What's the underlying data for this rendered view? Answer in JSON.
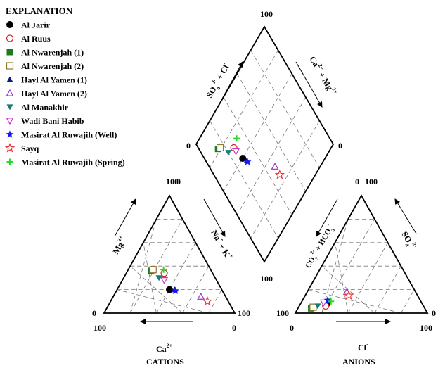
{
  "chart_data": {
    "type": "scatter",
    "subtype": "piper-diagram",
    "legend": {
      "title": "EXPLANATION",
      "placement": "top-left",
      "entries": [
        {
          "name": "Al Jarir",
          "marker": "circle-filled",
          "color": "#000000"
        },
        {
          "name": "Al Ruus",
          "marker": "circle-open",
          "color": "#cc2222"
        },
        {
          "name": "Al Nwarenjah (1)",
          "marker": "square-filled",
          "color": "#1f7a1f"
        },
        {
          "name": "Al Nwarenjah (2)",
          "marker": "square-open",
          "color": "#8a7a2a"
        },
        {
          "name": "Hayl Al Yamen (1)",
          "marker": "triangle-up-filled",
          "color": "#0a1f7a"
        },
        {
          "name": "Hayl Al Yamen (2)",
          "marker": "triangle-up-open",
          "color": "#9933cc"
        },
        {
          "name": "Al Manakhir",
          "marker": "triangle-down-filled",
          "color": "#1a7a7a"
        },
        {
          "name": "Wadi Bani Habib",
          "marker": "triangle-down-open",
          "color": "#cc33cc"
        },
        {
          "name": "Masirat Al Ruwajih (Well)",
          "marker": "star-filled",
          "color": "#1a1aee"
        },
        {
          "name": "Sayq",
          "marker": "star-open",
          "color": "#ee3333"
        },
        {
          "name": "Masirat Al Ruwajih (Spring)",
          "marker": "plus",
          "color": "#22dd22"
        }
      ]
    },
    "cation_triangle": {
      "xlabel": "Ca",
      "xlabel_sup": "2+",
      "title": "CATIONS",
      "left_axis": {
        "main": "Mg",
        "sup": "2+"
      },
      "right_axis": {
        "main": "Na",
        "sup1": "+",
        "mid": " + K",
        "sup2": "+"
      },
      "corner_labels": {
        "top": "100",
        "top_right": "0",
        "left": "0",
        "right": "100",
        "bottom_left": "100",
        "bottom_right": "0"
      },
      "grid": true,
      "points": [
        {
          "series": "Al Jarir",
          "Ca": 40,
          "Mg": 20,
          "NaK": 40
        },
        {
          "series": "Al Ruus",
          "Ca": 37,
          "Mg": 34,
          "NaK": 29
        },
        {
          "series": "Al Nwarenjah (1)",
          "Ca": 46,
          "Mg": 36,
          "NaK": 18
        },
        {
          "series": "Al Nwarenjah (2)",
          "Ca": 44,
          "Mg": 37,
          "NaK": 19
        },
        {
          "series": "Hayl Al Yamen (1)",
          "Ca": 36,
          "Mg": 20,
          "NaK": 44
        },
        {
          "series": "Hayl Al Yamen (2)",
          "Ca": 19,
          "Mg": 14,
          "NaK": 67
        },
        {
          "series": "Al Manakhir",
          "Ca": 43,
          "Mg": 30,
          "NaK": 27
        },
        {
          "series": "Wadi Bani Habib",
          "Ca": 40,
          "Mg": 28,
          "NaK": 32
        },
        {
          "series": "Masirat Al Ruwajih (Well)",
          "Ca": 36,
          "Mg": 19,
          "NaK": 45
        },
        {
          "series": "Sayq",
          "Ca": 16,
          "Mg": 10,
          "NaK": 74
        },
        {
          "series": "Masirat Al Ruwajih (Spring)",
          "Ca": 36,
          "Mg": 37,
          "NaK": 27
        }
      ]
    },
    "anion_triangle": {
      "xlabel": "Cl",
      "xlabel_sup": "-",
      "title": "ANIONS",
      "left_axis": {
        "main": "CO",
        "sub": "3",
        "sup": "2-",
        "mid": " + HCO",
        "sub2": "3",
        "sup2": "-"
      },
      "right_axis": {
        "main": "SO",
        "sub": "4",
        "sup": "2-"
      },
      "corner_labels": {
        "top_left": "0",
        "top_right": "100",
        "left": "100",
        "right": "0",
        "bottom_left": "0",
        "bottom_right": "100"
      },
      "grid": true,
      "points": [
        {
          "series": "Al Jarir",
          "Cl": 20,
          "CO3HCO3": 72,
          "SO4": 8
        },
        {
          "series": "Al Ruus",
          "Cl": 20,
          "CO3HCO3": 74,
          "SO4": 6
        },
        {
          "series": "Al Nwarenjah (1)",
          "Cl": 10,
          "CO3HCO3": 86,
          "SO4": 4
        },
        {
          "series": "Al Nwarenjah (2)",
          "Cl": 11,
          "CO3HCO3": 84,
          "SO4": 5
        },
        {
          "series": "Hayl Al Yamen (1)",
          "Cl": 19,
          "CO3HCO3": 70,
          "SO4": 11
        },
        {
          "series": "Hayl Al Yamen (2)",
          "Cl": 30,
          "CO3HCO3": 52,
          "SO4": 18
        },
        {
          "series": "Al Manakhir",
          "Cl": 14,
          "CO3HCO3": 80,
          "SO4": 6
        },
        {
          "series": "Wadi Bani Habib",
          "Cl": 17,
          "CO3HCO3": 74,
          "SO4": 9
        },
        {
          "series": "Masirat Al Ruwajih (Well)",
          "Cl": 19,
          "CO3HCO3": 70,
          "SO4": 11
        },
        {
          "series": "Sayq",
          "Cl": 33,
          "CO3HCO3": 52,
          "SO4": 15
        },
        {
          "series": "Masirat Al Ruwajih (Spring)",
          "Cl": 22,
          "CO3HCO3": 68,
          "SO4": 10
        }
      ]
    },
    "diamond": {
      "upper_left_axis": {
        "main": "SO",
        "sub": "4",
        "sup": "2-",
        "mid": " + Cl",
        "sup2": "-"
      },
      "upper_right_axis": {
        "main": "Ca",
        "sup": "2+",
        "mid": " + Mg",
        "sup2": "2+"
      },
      "corner_labels": {
        "top": "100",
        "left": "0",
        "right": "0",
        "bottom": "100"
      },
      "grid": true
    }
  }
}
